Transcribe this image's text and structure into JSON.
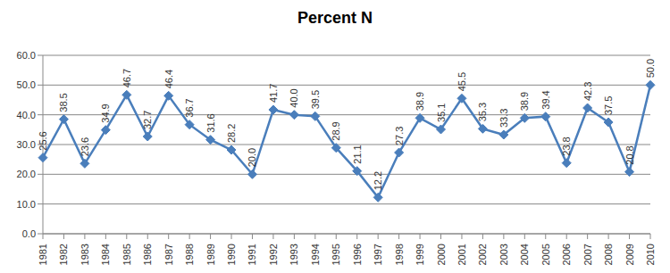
{
  "chart_data": {
    "type": "line",
    "title": "Percent N",
    "categories": [
      "1981",
      "1982",
      "1983",
      "1984",
      "1985",
      "1986",
      "1987",
      "1988",
      "1989",
      "1990",
      "1991",
      "1992",
      "1993",
      "1994",
      "1995",
      "1996",
      "1997",
      "1998",
      "1999",
      "2000",
      "2001",
      "2002",
      "2003",
      "2004",
      "2005",
      "2006",
      "2007",
      "2008",
      "2009",
      "2010"
    ],
    "values": [
      25.6,
      38.5,
      23.6,
      34.9,
      46.7,
      32.7,
      46.4,
      36.7,
      31.6,
      28.2,
      20.0,
      41.7,
      40.0,
      39.5,
      28.9,
      21.1,
      12.2,
      27.3,
      38.9,
      35.1,
      45.5,
      35.3,
      33.3,
      38.9,
      39.4,
      23.8,
      42.3,
      37.5,
      20.8,
      50.0
    ],
    "value_labels": [
      "25.6",
      "38.5",
      "23.6",
      "34.9",
      "46.7",
      "32.7",
      "46.4",
      "36.7",
      "31.6",
      "28.2",
      "20.0",
      "41.7",
      "40.0",
      "39.5",
      "28.9",
      "21.1",
      "12.2",
      "27.3",
      "38.9",
      "35.1",
      "45.5",
      "35.3",
      "33.3",
      "38.9",
      "39.4",
      "23.8",
      "42.3",
      "37.5",
      "20.8",
      "50.0"
    ],
    "color": "#4a7ebb",
    "marker": "diamond",
    "ylim": [
      0,
      60
    ],
    "yticks": [
      {
        "value": 0,
        "label": "0.0"
      },
      {
        "value": 10,
        "label": "10.0"
      },
      {
        "value": 20,
        "label": "20.0"
      },
      {
        "value": 30,
        "label": "30.0"
      },
      {
        "value": 40,
        "label": "40.0"
      },
      {
        "value": 50,
        "label": "50.0"
      },
      {
        "value": 60,
        "label": "60.0"
      }
    ],
    "grid": true,
    "data_labels": true
  }
}
